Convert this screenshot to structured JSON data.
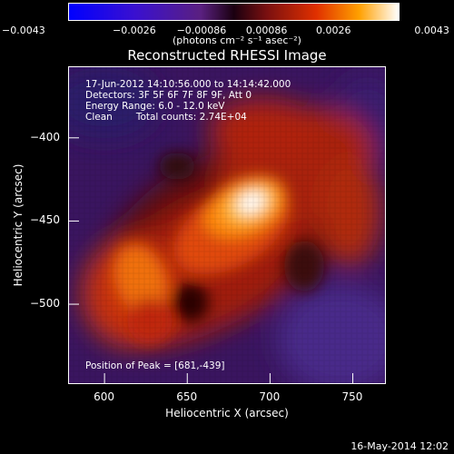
{
  "chart_data": {
    "type": "heatmap",
    "title": "Reconstructed RHESSI Image",
    "xlabel": "Heliocentric X (arcsec)",
    "ylabel": "Heliocentric Y (arcsec)",
    "xlim": [
      578,
      770
    ],
    "ylim": [
      -548,
      -357
    ],
    "x_ticks": [
      {
        "value": 600,
        "label": "600"
      },
      {
        "value": 650,
        "label": "650"
      },
      {
        "value": 700,
        "label": "700"
      },
      {
        "value": 750,
        "label": "750"
      }
    ],
    "y_ticks": [
      {
        "value": -400,
        "label": "−400"
      },
      {
        "value": -450,
        "label": "−450"
      },
      {
        "value": -500,
        "label": "−500"
      }
    ],
    "colorbar": {
      "range": [
        -0.0043,
        0.0043
      ],
      "ticks": [
        {
          "value": -0.0043,
          "label": "−0.0043"
        },
        {
          "value": -0.0026,
          "label": "−0.0026"
        },
        {
          "value": -0.00086,
          "label": "−0.00086"
        },
        {
          "value": 0.00086,
          "label": "0.00086"
        },
        {
          "value": 0.0026,
          "label": "0.0026"
        },
        {
          "value": 0.0043,
          "label": "0.0043"
        }
      ],
      "unit": "(photons cm⁻² s⁻¹ asec⁻²)"
    },
    "peak": {
      "x": 681,
      "y": -439
    },
    "grid": false
  },
  "annotations": {
    "time_range": "17-Jun-2012 14:10:56.000 to 14:14:42.000",
    "detectors": "Detectors: 3F 5F 6F 7F 8F 9F, Att 0",
    "energy": "Energy Range: 6.0 - 12.0 keV",
    "method": "Clean",
    "counts": "Total counts: 2.74E+04",
    "peak_text": "Position of Peak = [681,-439]"
  },
  "footer": {
    "date": "16-May-2014 12:02"
  }
}
